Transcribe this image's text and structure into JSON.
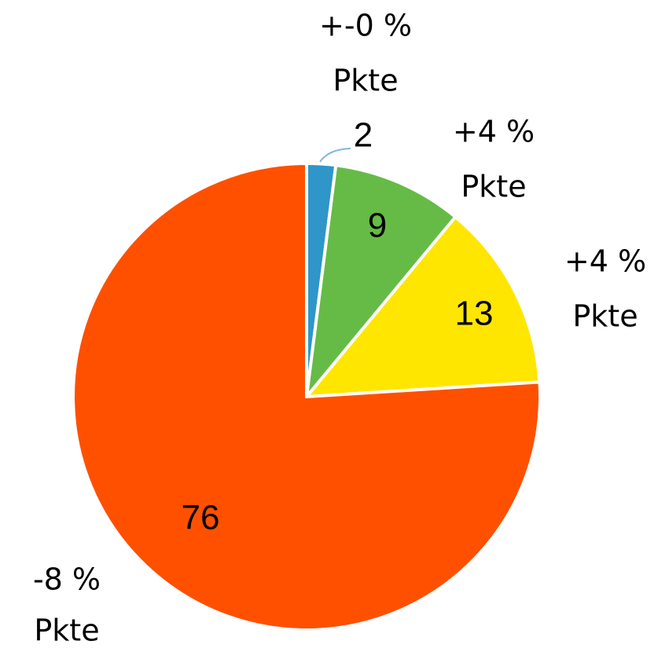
{
  "chart_data": {
    "type": "pie",
    "values": [
      2,
      9,
      13,
      76
    ],
    "colors": [
      "#2e96c8",
      "#66bb46",
      "#ffe600",
      "#ff5000"
    ],
    "annotations": [
      [
        "+-0 %",
        "Pkte"
      ],
      [
        "+4 %",
        "Pkte"
      ],
      [
        "+4 %",
        "Pkte"
      ],
      [
        "-8 %",
        "Pkte"
      ]
    ]
  }
}
